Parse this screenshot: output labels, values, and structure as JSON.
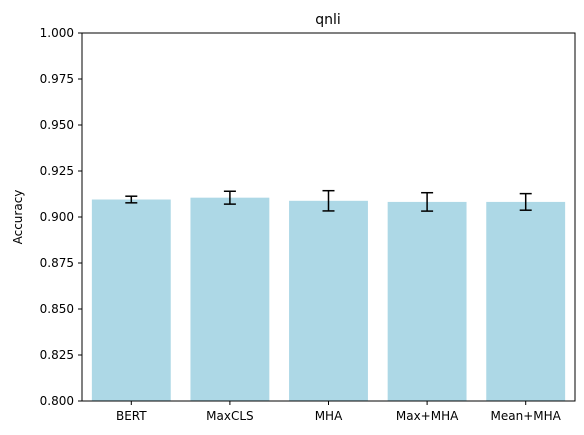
{
  "chart_data": {
    "type": "bar",
    "title": "qnli",
    "xlabel": "",
    "ylabel": "Accuracy",
    "categories": [
      "BERT",
      "MaxCLS",
      "MHA",
      "Max+MHA",
      "Mean+MHA"
    ],
    "values": [
      0.9095,
      0.9105,
      0.9088,
      0.9082,
      0.9082
    ],
    "error": [
      0.0018,
      0.0035,
      0.0055,
      0.005,
      0.0045
    ],
    "ylim": [
      0.8,
      1.0
    ],
    "yticks": [
      "0.800",
      "0.825",
      "0.850",
      "0.875",
      "0.900",
      "0.925",
      "0.950",
      "0.975",
      "1.000"
    ],
    "grid": false,
    "colors": {
      "bar": "#add8e6",
      "error": "#000000",
      "axis": "#000000"
    }
  }
}
